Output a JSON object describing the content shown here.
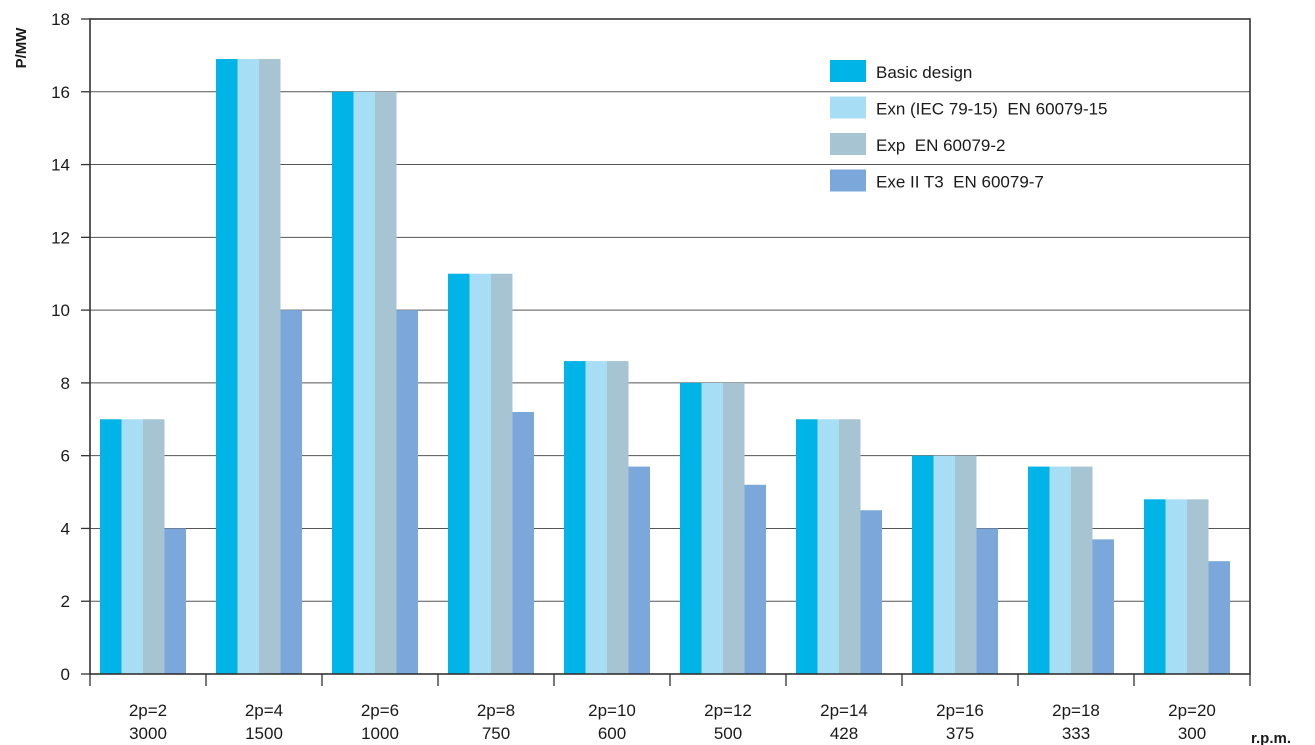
{
  "chart_data": {
    "type": "bar",
    "ylabel": "P/MW",
    "xlabel": "r.p.m.",
    "ylim": [
      0,
      18
    ],
    "yticks": [
      0,
      2,
      4,
      6,
      8,
      10,
      12,
      14,
      16,
      18
    ],
    "grid": true,
    "legend_position": "top-right",
    "categories": [
      {
        "poles": "2p=2",
        "rpm": "3000"
      },
      {
        "poles": "2p=4",
        "rpm": "1500"
      },
      {
        "poles": "2p=6",
        "rpm": "1000"
      },
      {
        "poles": "2p=8",
        "rpm": "750"
      },
      {
        "poles": "2p=10",
        "rpm": "600"
      },
      {
        "poles": "2p=12",
        "rpm": "500"
      },
      {
        "poles": "2p=14",
        "rpm": "428"
      },
      {
        "poles": "2p=16",
        "rpm": "375"
      },
      {
        "poles": "2p=18",
        "rpm": "333"
      },
      {
        "poles": "2p=20",
        "rpm": "300"
      }
    ],
    "series": [
      {
        "name": "Basic design",
        "color": "#00b4e8",
        "values": [
          7.0,
          16.9,
          16.0,
          11.0,
          8.6,
          8.0,
          7.0,
          6.0,
          5.7,
          4.8
        ]
      },
      {
        "name": "Exn (IEC 79-15)  EN 60079-15",
        "color": "#a8def5",
        "values": [
          7.0,
          16.9,
          16.0,
          11.0,
          8.6,
          8.0,
          7.0,
          6.0,
          5.7,
          4.8
        ]
      },
      {
        "name": "Exp  EN 60079-2",
        "color": "#a7c4d3",
        "values": [
          7.0,
          16.9,
          16.0,
          11.0,
          8.6,
          8.0,
          7.0,
          6.0,
          5.7,
          4.8
        ]
      },
      {
        "name": "Exe II T3  EN 60079-7",
        "color": "#7ba7da",
        "values": [
          4.0,
          10.0,
          10.0,
          7.2,
          5.7,
          5.2,
          4.5,
          4.0,
          3.7,
          3.1
        ]
      }
    ]
  }
}
